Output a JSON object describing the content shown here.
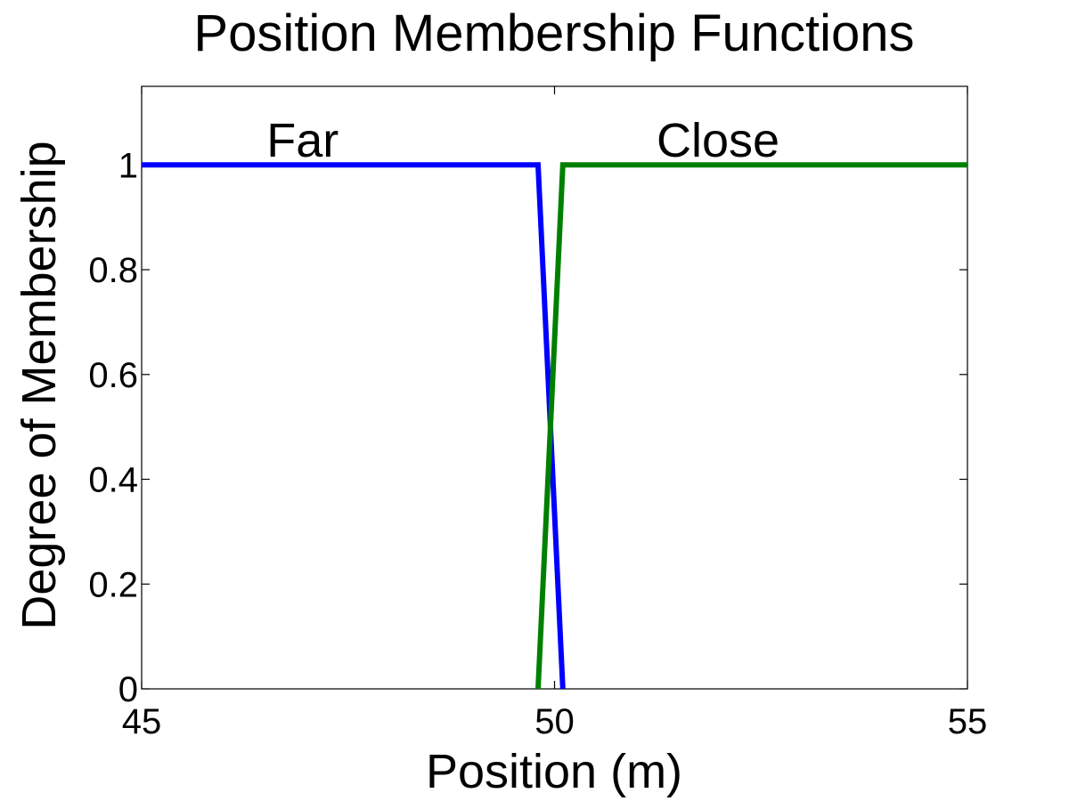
{
  "chart_data": {
    "type": "line",
    "title": "Position Membership Functions",
    "xlabel": "Position (m)",
    "ylabel": "Degree of Membership",
    "xlim": [
      45,
      55
    ],
    "ylim": [
      0,
      1.15
    ],
    "x_ticks": [
      45,
      50,
      55
    ],
    "x_tick_labels": [
      "45",
      "50",
      "55"
    ],
    "y_ticks": [
      0,
      0.2,
      0.4,
      0.6,
      0.8,
      1
    ],
    "y_tick_labels": [
      "0",
      "0.2",
      "0.4",
      "0.6",
      "0.8",
      "1"
    ],
    "grid": false,
    "series": [
      {
        "name": "Far",
        "color": "#0000ff",
        "x": [
          45,
          49.8,
          50.1
        ],
        "y": [
          1,
          1,
          0
        ]
      },
      {
        "name": "Close",
        "color": "#008000",
        "x": [
          49.8,
          50.1,
          55
        ],
        "y": [
          0,
          1,
          1
        ]
      }
    ],
    "annotations": [
      {
        "text": "Far",
        "x": 46.95,
        "y": 1.05
      },
      {
        "text": "Close",
        "x": 51.98,
        "y": 1.05
      }
    ]
  }
}
